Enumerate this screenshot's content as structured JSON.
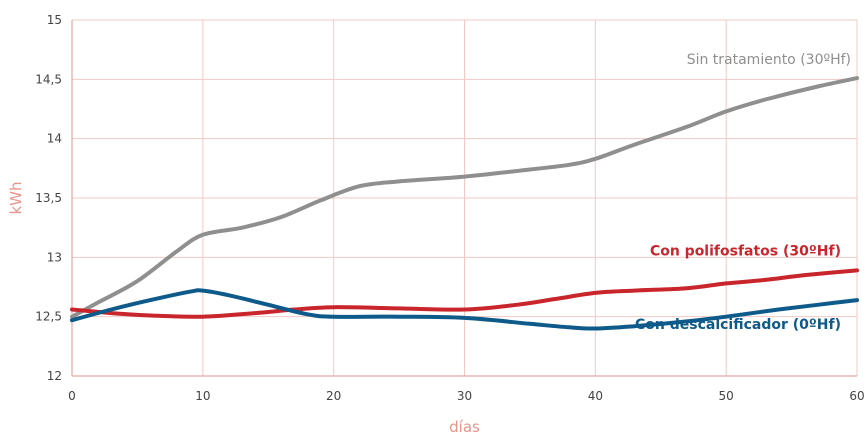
{
  "chart_data": {
    "type": "line",
    "xlabel": "días",
    "ylabel": "kWh",
    "xlim": [
      0,
      60
    ],
    "ylim": [
      12,
      15
    ],
    "x_ticks": [
      0,
      10,
      20,
      30,
      40,
      50,
      60
    ],
    "x_tick_labels": [
      "0",
      "10",
      "20",
      "30",
      "40",
      "50",
      "60"
    ],
    "y_ticks": [
      12,
      12.5,
      13,
      13.5,
      14,
      14.5,
      15
    ],
    "y_tick_labels": [
      "12",
      "12,5",
      "13",
      "13,5",
      "14",
      "14,5",
      "15"
    ],
    "grid": true,
    "legend": "inline labels at right end of each line",
    "series": [
      {
        "name": "Sin tratamiento (30ºHf)",
        "color": "#8f8f8f",
        "x": [
          0,
          2,
          5,
          8,
          10,
          13,
          16,
          19,
          22,
          25,
          30,
          35,
          38,
          40,
          43,
          47,
          50,
          53,
          57,
          60
        ],
        "y": [
          12.5,
          12.62,
          12.8,
          13.05,
          13.19,
          13.25,
          13.34,
          13.48,
          13.6,
          13.64,
          13.68,
          13.74,
          13.78,
          13.83,
          13.95,
          14.1,
          14.23,
          14.33,
          14.44,
          14.51
        ]
      },
      {
        "name": "Con polifosfatos (30ºHf)",
        "color": "#c8262c",
        "x": [
          0,
          3,
          6,
          10,
          14,
          17,
          20,
          25,
          30,
          34,
          37,
          40,
          43,
          47,
          50,
          53,
          56,
          60
        ],
        "y": [
          12.56,
          12.53,
          12.51,
          12.5,
          12.53,
          12.56,
          12.58,
          12.57,
          12.56,
          12.6,
          12.65,
          12.7,
          12.72,
          12.74,
          12.78,
          12.81,
          12.85,
          12.89
        ]
      },
      {
        "name": "Con descalcificador (0ºHf)",
        "color": "#0e5a8a",
        "x": [
          0,
          3,
          6,
          9,
          10,
          12,
          15,
          18,
          20,
          25,
          30,
          35,
          38,
          40,
          43,
          47,
          50,
          54,
          57,
          60
        ],
        "y": [
          12.47,
          12.56,
          12.64,
          12.71,
          12.72,
          12.68,
          12.6,
          12.52,
          12.5,
          12.5,
          12.49,
          12.44,
          12.41,
          12.4,
          12.42,
          12.46,
          12.5,
          12.56,
          12.6,
          12.64
        ]
      }
    ]
  }
}
